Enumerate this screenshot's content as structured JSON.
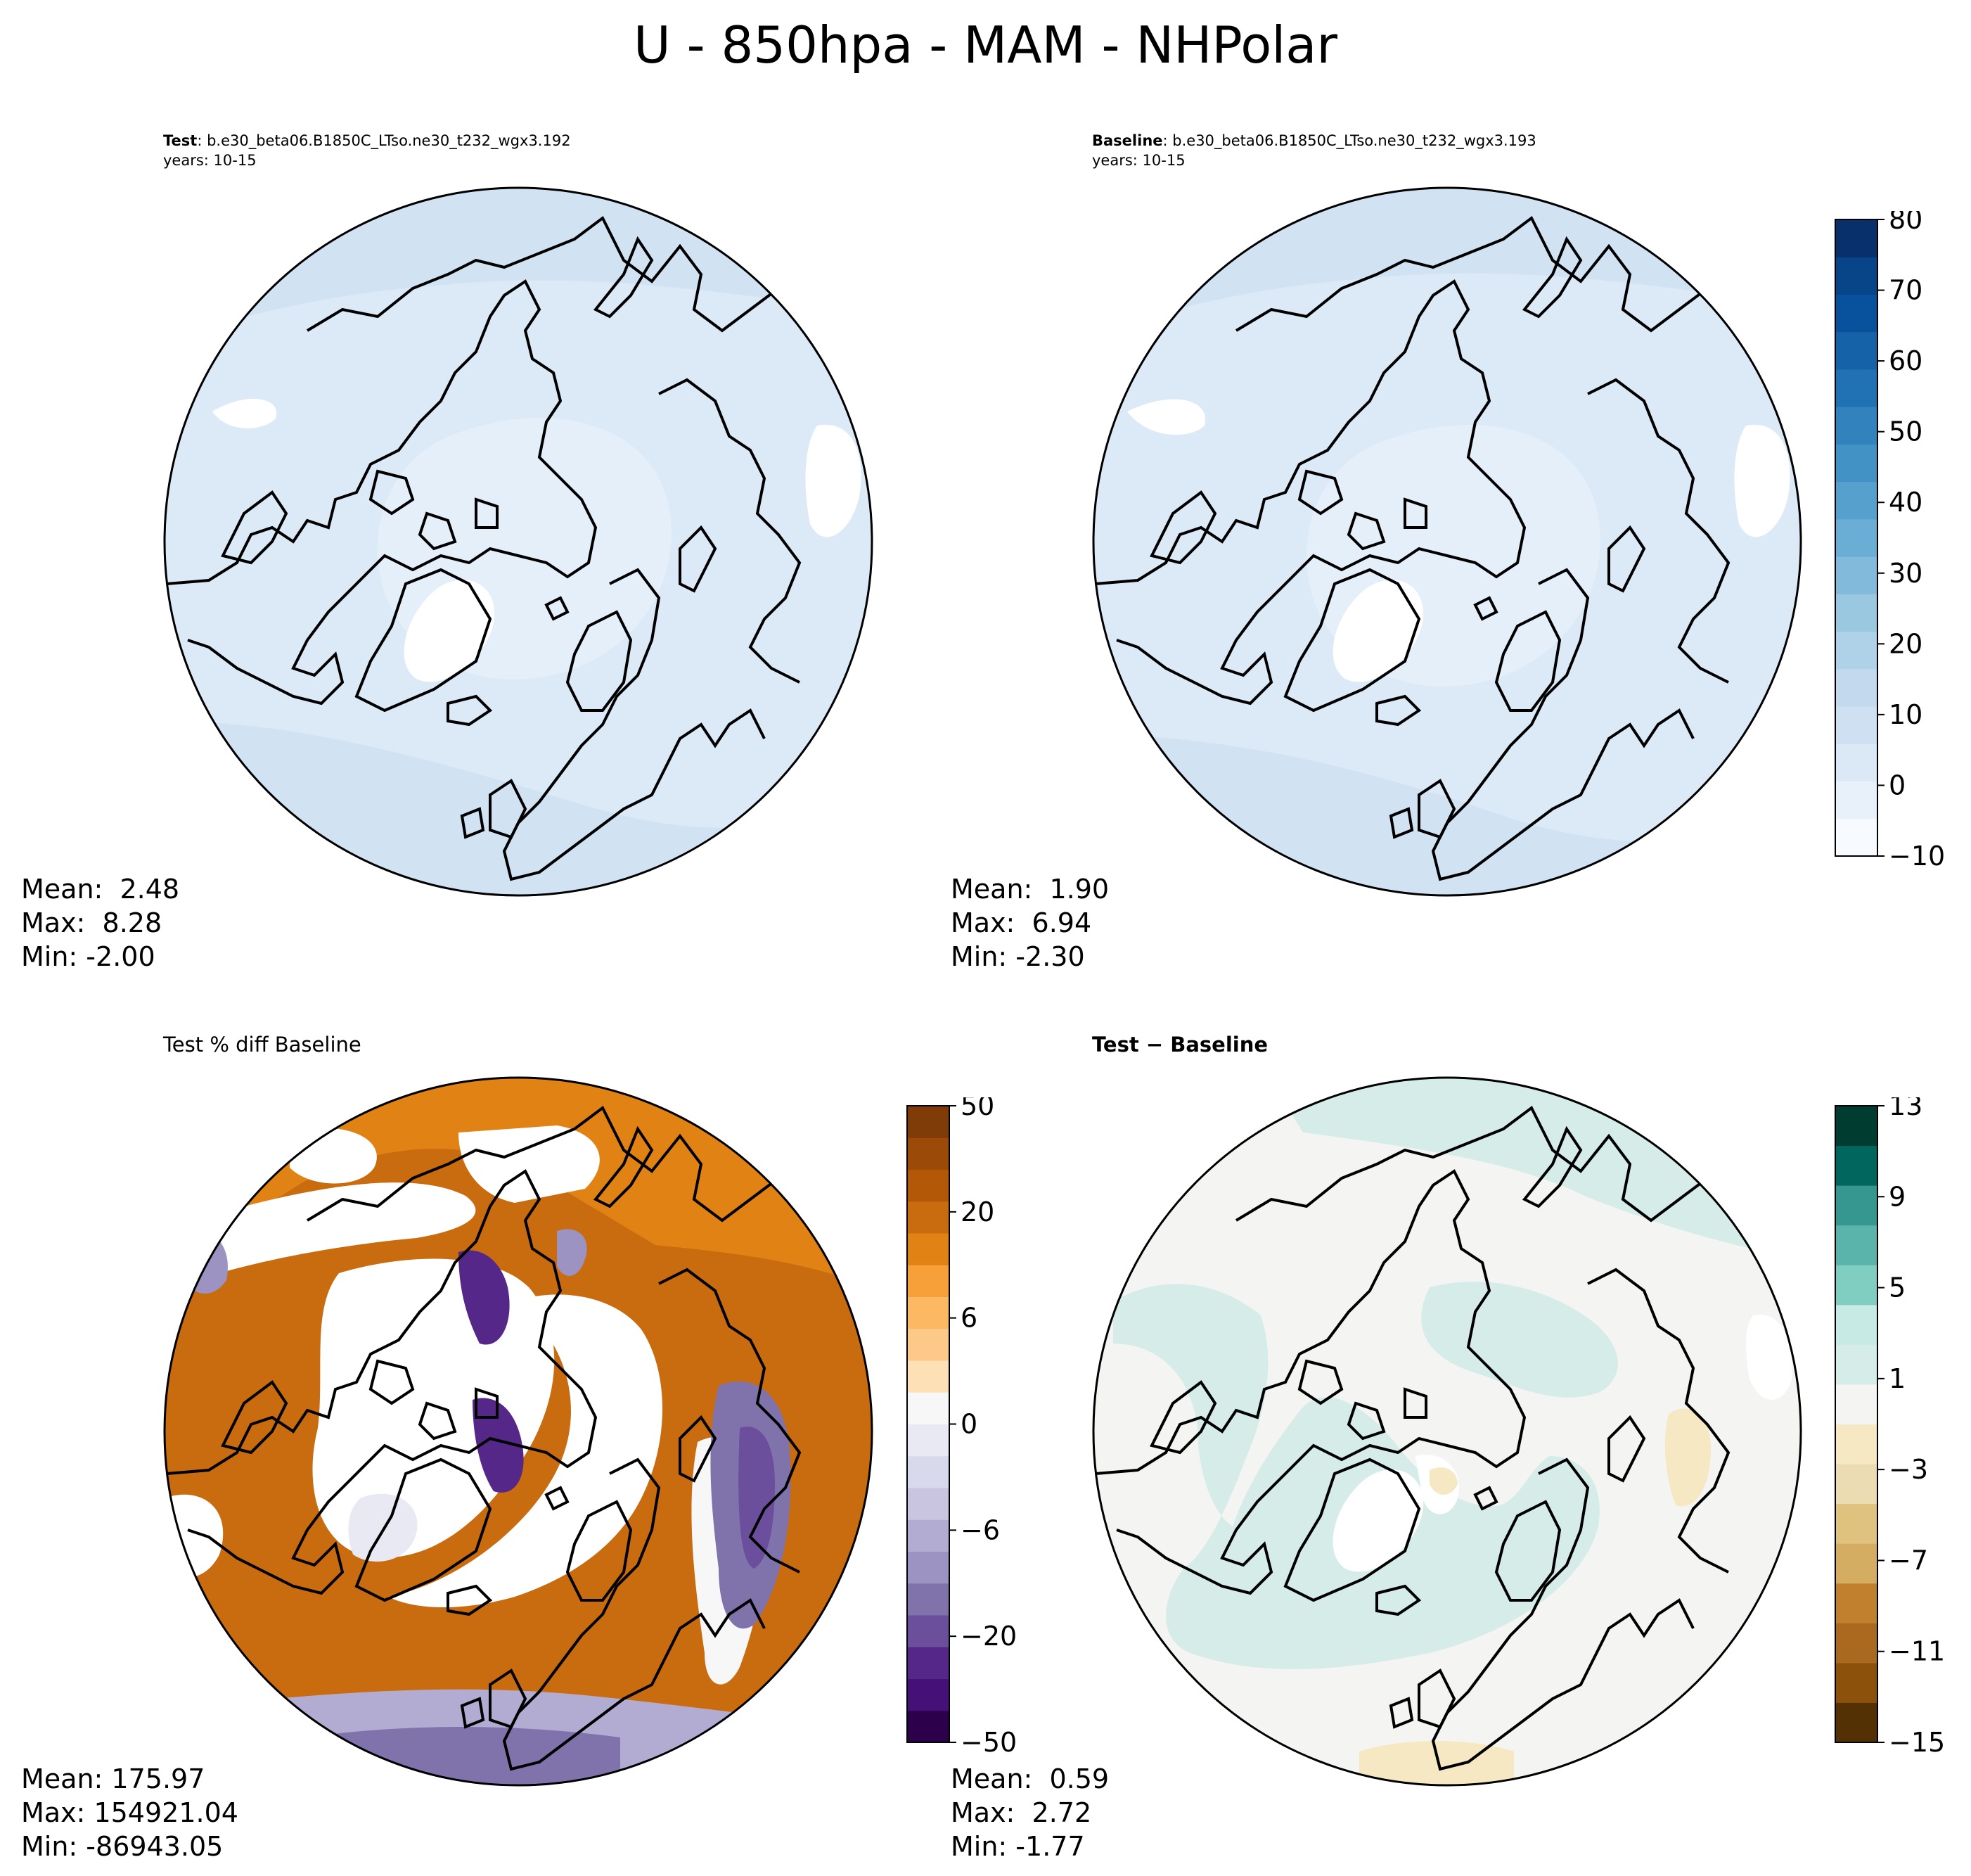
{
  "figure_title": "U - 850hpa - MAM - NHPolar",
  "panels": {
    "test": {
      "label_bold": "Test",
      "label_rest": ": b.e30_beta06.B1850C_LTso.ne30_t232_wgx3.192",
      "years": "years: 10-15",
      "mean": "Mean:  2.48",
      "max": "Max:  8.28",
      "min": "Min: -2.00"
    },
    "baseline": {
      "label_bold": "Baseline",
      "label_rest": ": b.e30_beta06.B1850C_LTso.ne30_t232_wgx3.193",
      "years": "years: 10-15",
      "mean": "Mean:  1.90",
      "max": "Max:  6.94",
      "min": "Min: -2.30"
    },
    "pct_diff": {
      "title": "Test % diff Baseline",
      "mean": "Mean: 175.97",
      "max": "Max: 154921.04",
      "min": "Min: -86943.05"
    },
    "diff": {
      "title": "Test − Baseline",
      "mean": "Mean:  0.59",
      "max": "Max:  2.72",
      "min": "Min: -1.77"
    }
  },
  "colorbars": {
    "blues": {
      "ticks": [
        "80",
        "70",
        "60",
        "50",
        "40",
        "30",
        "20",
        "10",
        "0",
        "−10"
      ],
      "colors": [
        "#f7fbff",
        "#e8f1fa",
        "#dbe9f6",
        "#cee0f2",
        "#c2d9ee",
        "#b0d2e8",
        "#9ac8e1",
        "#82badb",
        "#6aaed6",
        "#56a0ce",
        "#4292c6",
        "#3282be",
        "#2171b5",
        "#1562a9",
        "#08519c",
        "#084488",
        "#08306b"
      ]
    },
    "puor": {
      "ticks": [
        "50",
        "20",
        "6",
        "0",
        "−6",
        "−20",
        "−50"
      ],
      "colors": [
        "#2d004b",
        "#451077",
        "#542788",
        "#6b4e9c",
        "#8073ac",
        "#9c93c3",
        "#b2abd2",
        "#c9c5e1",
        "#d8daeb",
        "#e8e9f2",
        "#f7f7f7",
        "#fee0b6",
        "#fdc989",
        "#fdb863",
        "#f7a03a",
        "#e08214",
        "#c96b0f",
        "#b35806",
        "#9b4a07",
        "#7f3b08"
      ]
    },
    "brbg": {
      "ticks": [
        "13",
        "9",
        "5",
        "1",
        "−3",
        "−7",
        "−11",
        "−15"
      ],
      "colors": [
        "#543005",
        "#8c510a",
        "#a96a1f",
        "#bf812d",
        "#d5ad62",
        "#dfc27d",
        "#ebdcb4",
        "#f6e8c3",
        "#f4f5f3",
        "#d6ece8",
        "#c7eae5",
        "#80cdc1",
        "#5ab4ac",
        "#35978f",
        "#01665e",
        "#003c30"
      ]
    }
  }
}
